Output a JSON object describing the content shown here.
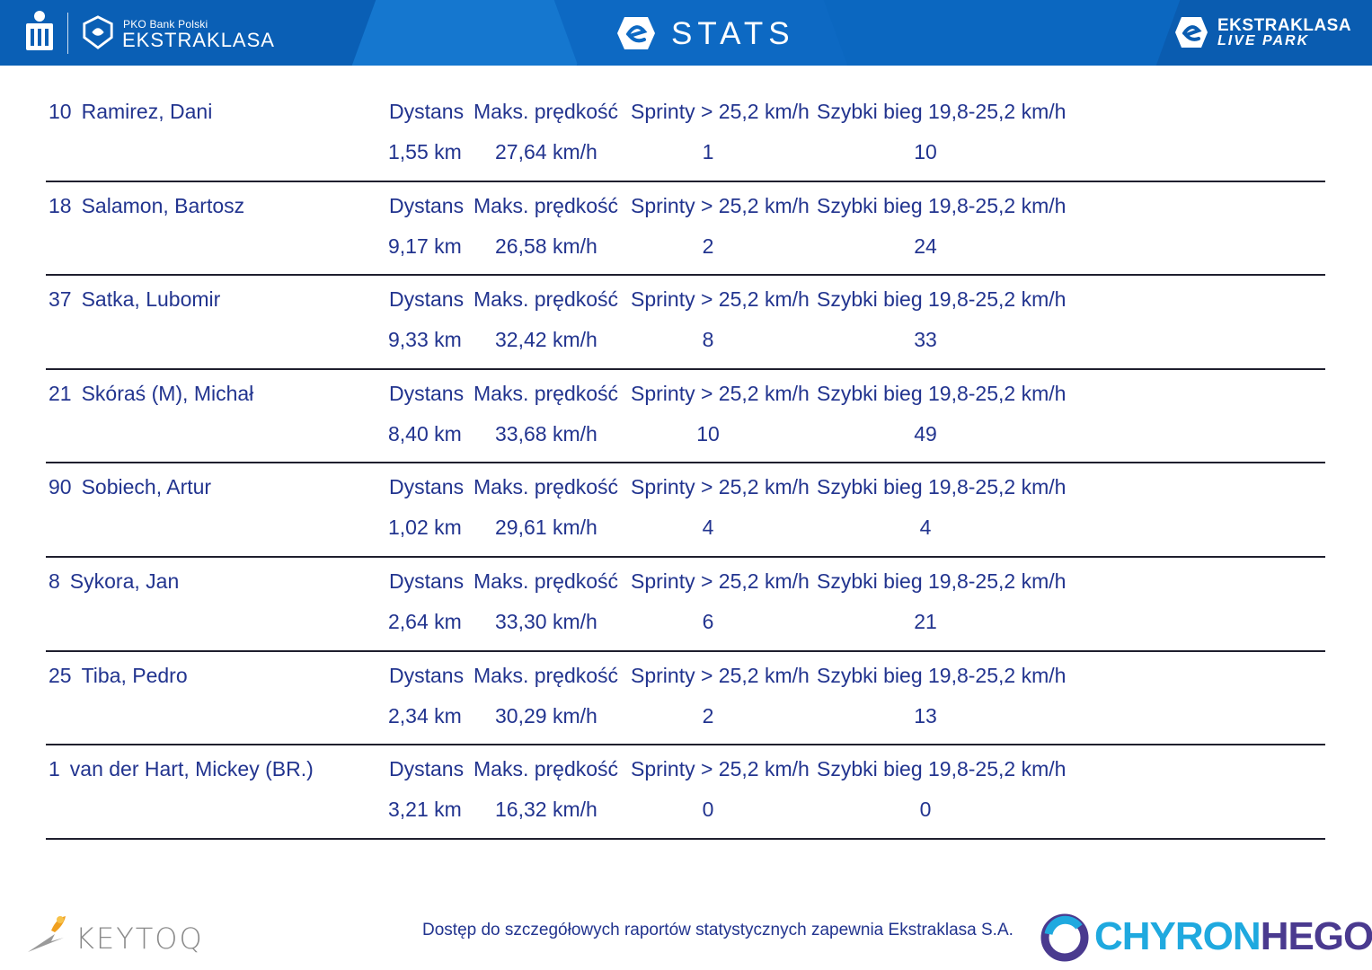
{
  "header": {
    "pko_small": "PKO Bank Polski",
    "ekstraklasa": "EKSTRAKLASA",
    "title": "STATS",
    "livepark_line1": "EKSTRAKLASA",
    "livepark_line2": "LIVE PARK",
    "color": "#0b67c0"
  },
  "labels": {
    "dystans": "Dystans",
    "maks": "Maks. prędkość",
    "sprinty": "Sprinty > 25,2 km/h",
    "szybki": "Szybki bieg 19,8-25,2 km/h"
  },
  "players": [
    {
      "num": "10",
      "name": "Ramirez, Dani",
      "dystans": "1,55 km",
      "maks": "27,64 km/h",
      "sprinty": "1",
      "szybki": "10"
    },
    {
      "num": "18",
      "name": "Salamon, Bartosz",
      "dystans": "9,17 km",
      "maks": "26,58 km/h",
      "sprinty": "2",
      "szybki": "24"
    },
    {
      "num": "37",
      "name": "Satka, Lubomir",
      "dystans": "9,33 km",
      "maks": "32,42 km/h",
      "sprinty": "8",
      "szybki": "33"
    },
    {
      "num": "21",
      "name": "Skóraś (M), Michał",
      "dystans": "8,40 km",
      "maks": "33,68 km/h",
      "sprinty": "10",
      "szybki": "49"
    },
    {
      "num": "90",
      "name": "Sobiech, Artur",
      "dystans": "1,02 km",
      "maks": "29,61 km/h",
      "sprinty": "4",
      "szybki": "4"
    },
    {
      "num": "8",
      "name": "Sykora, Jan",
      "dystans": "2,64 km",
      "maks": "33,30 km/h",
      "sprinty": "6",
      "szybki": "21"
    },
    {
      "num": "25",
      "name": "Tiba, Pedro",
      "dystans": "2,34 km",
      "maks": "30,29 km/h",
      "sprinty": "2",
      "szybki": "13"
    },
    {
      "num": "1",
      "name": "van der Hart, Mickey (BR.)",
      "dystans": "3,21 km",
      "maks": "16,32 km/h",
      "sprinty": "0",
      "szybki": "0"
    }
  ],
  "footer": {
    "keytoq": "KEYTOQ",
    "note": "Dostęp do szczegółowych raportów statystycznych zapewnia Ekstraklasa S.A.",
    "chyron_a": "CHYRON",
    "chyron_b": "HEGO",
    "colors": {
      "text": "#22348f",
      "chyron_a": "#1fa9df",
      "chyron_b": "#4a3a8f"
    }
  }
}
